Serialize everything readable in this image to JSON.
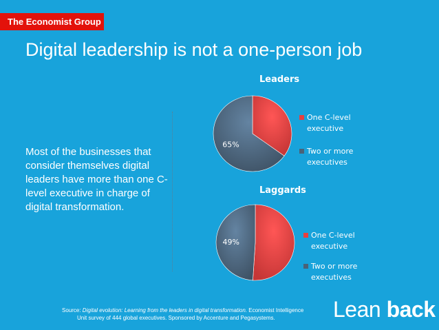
{
  "header": {
    "logo_text": "The Economist Group"
  },
  "slide": {
    "title": "Digital leadership is not a one-person job",
    "body": "Most of the businesses that consider themselves digital leaders have more than one C-level executive in charge of digital transformation."
  },
  "source": {
    "line1_prefix": "Source: ",
    "line1_title": "Digital evolution: Learning from the leaders in digital transformation.",
    "line1_suffix": " Economist Intelligence",
    "line2": "Unit survey of 444 global executives. Sponsored by Accenture and Pegasystems."
  },
  "brand": {
    "word1": "Lean",
    "word2": "back"
  },
  "colors": {
    "background": "#18A3DB",
    "logo_red": "#E3120B",
    "one_c_level": "#E8403F",
    "two_or_more": "#4A6278"
  },
  "chart_data": [
    {
      "type": "pie",
      "title": "Leaders",
      "labels": [
        "One C-level executive",
        "Two or more executives"
      ],
      "values": [
        35,
        65
      ],
      "data_labels": [
        "",
        "65%"
      ],
      "colors": [
        "#E8403F",
        "#4A6278"
      ],
      "legend": "right"
    },
    {
      "type": "pie",
      "title": "Laggards",
      "labels": [
        "One C-level executive",
        "Two or more executives"
      ],
      "values": [
        51,
        49
      ],
      "data_labels": [
        "",
        "49%"
      ],
      "colors": [
        "#E8403F",
        "#4A6278"
      ],
      "legend": "right"
    }
  ]
}
